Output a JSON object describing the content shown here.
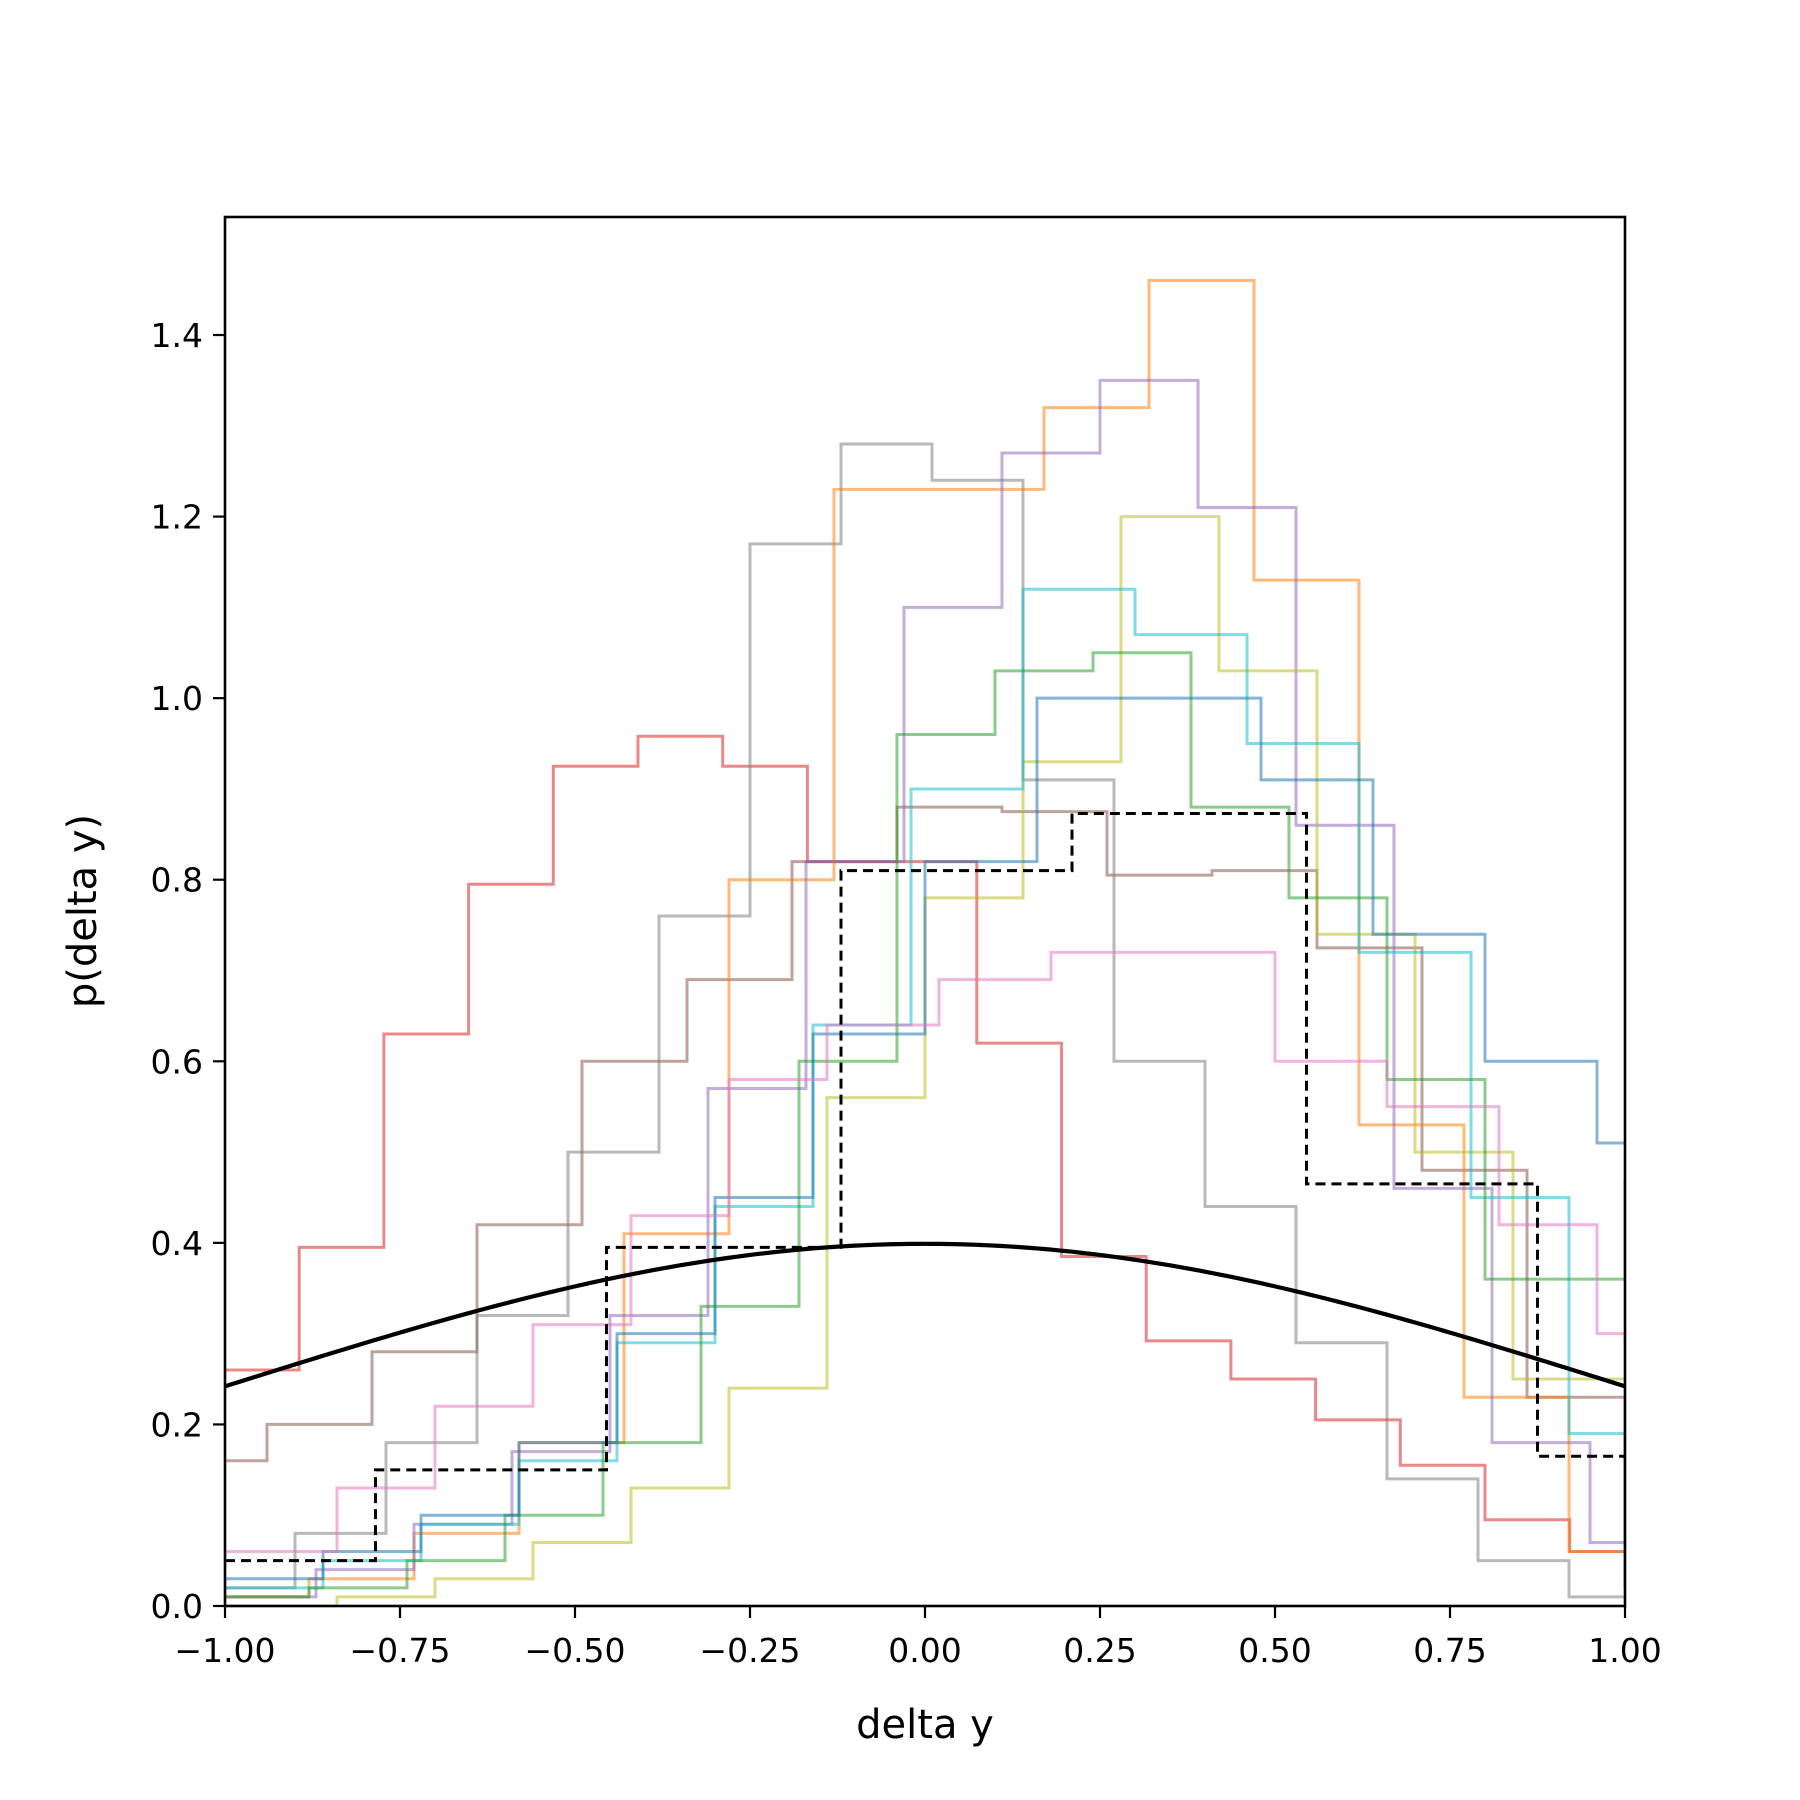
{
  "chart_data": {
    "type": "line",
    "title": "",
    "xlabel": "delta y",
    "ylabel": "p(delta y)",
    "xlim": [
      -1.0,
      1.0
    ],
    "ylim": [
      0.0,
      1.53
    ],
    "xticks": [
      -1.0,
      -0.75,
      -0.5,
      -0.25,
      0.0,
      0.25,
      0.5,
      0.75,
      1.0
    ],
    "xtick_labels": [
      "−1.00",
      "−0.75",
      "−0.50",
      "−0.25",
      "0.00",
      "0.25",
      "0.50",
      "0.75",
      "1.00"
    ],
    "yticks": [
      0.0,
      0.2,
      0.4,
      0.6,
      0.8,
      1.0,
      1.2,
      1.4
    ],
    "ytick_labels": [
      "0.0",
      "0.2",
      "0.4",
      "0.6",
      "0.8",
      "1.0",
      "1.2",
      "1.4"
    ],
    "grid": false,
    "legend": null,
    "histograms": [
      {
        "color": "#d62728",
        "edges": [
          -1.0,
          -0.894,
          -0.773,
          -0.652,
          -0.531,
          -0.41,
          -0.289,
          -0.168,
          -0.047,
          0.074,
          0.195,
          0.316,
          0.437,
          0.558,
          0.679,
          0.8,
          0.921,
          1.0
        ],
        "values": [
          0.26,
          0.395,
          0.63,
          0.795,
          0.925,
          0.958,
          0.925,
          0.82,
          0.82,
          0.62,
          0.385,
          0.292,
          0.25,
          0.205,
          0.155,
          0.095,
          0.06
        ]
      },
      {
        "color": "#8c564b",
        "edges": [
          -1.0,
          -0.94,
          -0.79,
          -0.64,
          -0.49,
          -0.34,
          -0.19,
          -0.04,
          0.11,
          0.26,
          0.41,
          0.56,
          0.71,
          0.86,
          1.0
        ],
        "values": [
          0.16,
          0.2,
          0.28,
          0.42,
          0.6,
          0.69,
          0.82,
          0.88,
          0.875,
          0.805,
          0.81,
          0.725,
          0.48,
          0.23,
          0.06
        ]
      },
      {
        "color": "#7f7f7f",
        "edges": [
          -1.0,
          -0.9,
          -0.77,
          -0.64,
          -0.51,
          -0.38,
          -0.25,
          -0.12,
          0.01,
          0.14,
          0.27,
          0.4,
          0.53,
          0.66,
          0.79,
          0.92,
          1.0
        ],
        "values": [
          0.02,
          0.08,
          0.18,
          0.32,
          0.5,
          0.76,
          1.17,
          1.28,
          1.24,
          0.91,
          0.6,
          0.44,
          0.29,
          0.14,
          0.05,
          0.01
        ]
      },
      {
        "color": "#ff7f0e",
        "edges": [
          -1.0,
          -0.88,
          -0.73,
          -0.58,
          -0.43,
          -0.28,
          -0.13,
          0.02,
          0.17,
          0.32,
          0.47,
          0.62,
          0.77,
          0.92,
          1.0
        ],
        "values": [
          0.01,
          0.03,
          0.08,
          0.18,
          0.41,
          0.8,
          1.23,
          1.23,
          1.32,
          1.46,
          1.13,
          0.53,
          0.23,
          0.06,
          0.02
        ]
      },
      {
        "color": "#9467bd",
        "edges": [
          -1.0,
          -0.87,
          -0.73,
          -0.59,
          -0.45,
          -0.31,
          -0.17,
          -0.03,
          0.11,
          0.25,
          0.39,
          0.53,
          0.67,
          0.81,
          0.95,
          1.0
        ],
        "values": [
          0.01,
          0.04,
          0.09,
          0.17,
          0.32,
          0.57,
          0.82,
          1.1,
          1.27,
          1.35,
          1.21,
          0.86,
          0.46,
          0.18,
          0.07,
          0.02
        ]
      },
      {
        "color": "#bcbd22",
        "edges": [
          -1.0,
          -0.84,
          -0.7,
          -0.56,
          -0.42,
          -0.28,
          -0.14,
          0.0,
          0.14,
          0.28,
          0.42,
          0.56,
          0.7,
          0.84,
          1.0
        ],
        "values": [
          0.0,
          0.01,
          0.03,
          0.07,
          0.13,
          0.24,
          0.56,
          0.78,
          0.93,
          1.2,
          1.03,
          0.74,
          0.5,
          0.25,
          0.05
        ]
      },
      {
        "color": "#17becf",
        "edges": [
          -1.0,
          -0.86,
          -0.72,
          -0.58,
          -0.44,
          -0.3,
          -0.16,
          -0.02,
          0.14,
          0.3,
          0.46,
          0.62,
          0.78,
          0.92,
          1.0
        ],
        "values": [
          0.02,
          0.05,
          0.09,
          0.16,
          0.29,
          0.44,
          0.64,
          0.9,
          1.12,
          1.07,
          0.95,
          0.72,
          0.45,
          0.19,
          0.03
        ]
      },
      {
        "color": "#2ca02c",
        "edges": [
          -1.0,
          -0.88,
          -0.74,
          -0.6,
          -0.46,
          -0.32,
          -0.18,
          -0.04,
          0.1,
          0.24,
          0.38,
          0.52,
          0.66,
          0.8,
          1.0
        ],
        "values": [
          0.01,
          0.02,
          0.05,
          0.1,
          0.18,
          0.33,
          0.6,
          0.96,
          1.03,
          1.05,
          0.88,
          0.78,
          0.58,
          0.36,
          0.47
        ]
      },
      {
        "color": "#1f77b4",
        "edges": [
          -1.0,
          -0.86,
          -0.72,
          -0.58,
          -0.44,
          -0.3,
          -0.16,
          0.0,
          0.16,
          0.32,
          0.48,
          0.64,
          0.8,
          0.96,
          1.0
        ],
        "values": [
          0.03,
          0.06,
          0.1,
          0.18,
          0.3,
          0.45,
          0.63,
          0.82,
          1.0,
          1.0,
          0.91,
          0.74,
          0.6,
          0.51,
          0.51
        ]
      },
      {
        "color": "#e377c2",
        "edges": [
          -1.0,
          -0.84,
          -0.7,
          -0.56,
          -0.42,
          -0.28,
          -0.14,
          0.02,
          0.18,
          0.34,
          0.5,
          0.66,
          0.82,
          0.96,
          1.0
        ],
        "values": [
          0.06,
          0.13,
          0.22,
          0.31,
          0.43,
          0.58,
          0.64,
          0.69,
          0.72,
          0.72,
          0.6,
          0.55,
          0.42,
          0.3,
          0.29
        ]
      }
    ],
    "reference_histogram": {
      "color": "#000000",
      "style": "dashed",
      "edges": [
        -1.0,
        -0.785,
        -0.455,
        -0.12,
        0.21,
        0.545,
        0.875,
        1.0
      ],
      "values": [
        0.05,
        0.15,
        0.395,
        0.81,
        0.873,
        0.465,
        0.165
      ]
    },
    "reference_curve": {
      "color": "#000000",
      "style": "solid",
      "function": "normal pdf",
      "mean": 0.0,
      "std": 1.0
    }
  }
}
